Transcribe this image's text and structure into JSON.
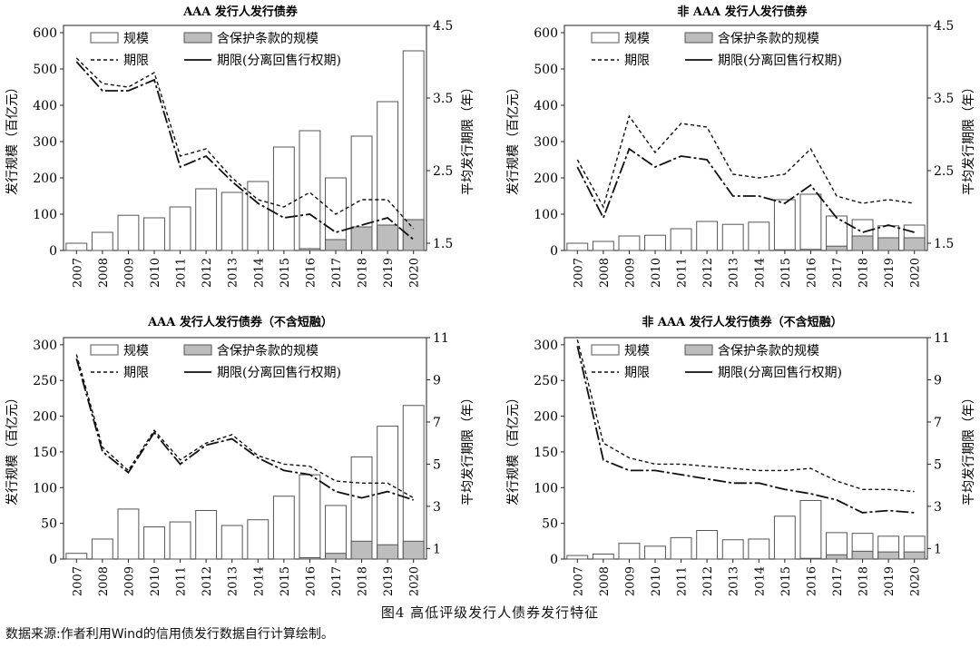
{
  "figure": {
    "caption": "图4 高低评级发行人债券发行特征",
    "source": "数据来源:作者利用Wind的信用债发行数据自行计算绘制。"
  },
  "chart_data": [
    {
      "type": "bar",
      "title": "AAA 发行人发行债券",
      "ylabel": "发行规模（百亿元）",
      "y2label": "平均发行期限（年）",
      "ylim": [
        0,
        620
      ],
      "y2lim": [
        1.4,
        4.5
      ],
      "yticks": [
        0,
        100,
        200,
        300,
        400,
        500,
        600
      ],
      "y2ticks": [
        1.5,
        2.5,
        3.5,
        4.5
      ],
      "categories": [
        "2007",
        "2008",
        "2009",
        "2010",
        "2011",
        "2012",
        "2013",
        "2014",
        "2015",
        "2016",
        "2017",
        "2018",
        "2019",
        "2020"
      ],
      "legend": [
        "规模",
        "含保护条款的规模",
        "期限",
        "期限(分离回售行权期)"
      ],
      "series": [
        {
          "name": "规模",
          "type": "bar",
          "values": [
            20,
            50,
            97,
            90,
            120,
            170,
            160,
            190,
            285,
            330,
            200,
            315,
            410,
            550
          ]
        },
        {
          "name": "含保护条款的规模",
          "type": "bar",
          "values": [
            0,
            0,
            0,
            0,
            0,
            0,
            0,
            0,
            0,
            5,
            30,
            65,
            70,
            85
          ]
        },
        {
          "name": "期限",
          "type": "line",
          "values": [
            4.05,
            3.7,
            3.65,
            3.85,
            2.7,
            2.8,
            2.4,
            2.1,
            2.0,
            2.2,
            1.9,
            2.1,
            2.1,
            1.7
          ]
        },
        {
          "name": "期限(分离回售行权期)",
          "type": "line",
          "values": [
            4.0,
            3.6,
            3.6,
            3.75,
            2.55,
            2.7,
            2.35,
            2.05,
            1.85,
            1.9,
            1.65,
            1.75,
            1.85,
            1.55
          ]
        }
      ]
    },
    {
      "type": "bar",
      "title": "非 AAA 发行人发行债券",
      "ylabel": "发行规模（百亿元）",
      "y2label": "平均发行期限（年）",
      "ylim": [
        0,
        620
      ],
      "y2lim": [
        1.4,
        4.5
      ],
      "yticks": [
        0,
        100,
        200,
        300,
        400,
        500,
        600
      ],
      "y2ticks": [
        1.5,
        2.5,
        3.5,
        4.5
      ],
      "categories": [
        "2007",
        "2008",
        "2009",
        "2010",
        "2011",
        "2012",
        "2013",
        "2014",
        "2015",
        "2016",
        "2017",
        "2018",
        "2019",
        "2020"
      ],
      "legend": [
        "规模",
        "含保护条款的规模",
        "期限",
        "期限(分离回售行权期)"
      ],
      "series": [
        {
          "name": "规模",
          "type": "bar",
          "values": [
            20,
            25,
            40,
            42,
            60,
            80,
            72,
            78,
            140,
            155,
            95,
            85,
            68,
            70
          ]
        },
        {
          "name": "含保护条款的规模",
          "type": "bar",
          "values": [
            0,
            0,
            0,
            0,
            0,
            0,
            0,
            0,
            2,
            3,
            12,
            40,
            35,
            35
          ]
        },
        {
          "name": "期限",
          "type": "line",
          "values": [
            2.65,
            2.0,
            3.25,
            2.75,
            3.15,
            3.1,
            2.45,
            2.4,
            2.45,
            2.8,
            2.15,
            2.05,
            2.1,
            2.05
          ]
        },
        {
          "name": "期限(分离回售行权期)",
          "type": "line",
          "values": [
            2.55,
            1.85,
            2.8,
            2.55,
            2.7,
            2.65,
            2.15,
            2.15,
            2.05,
            2.3,
            1.85,
            1.65,
            1.75,
            1.65
          ]
        }
      ]
    },
    {
      "type": "bar",
      "title": "AAA 发行人发行债券（不含短融）",
      "ylabel": "发行规模（百亿元）",
      "y2label": "平均发行期限（年）",
      "ylim": [
        0,
        310
      ],
      "y2lim": [
        0.5,
        11
      ],
      "yticks": [
        0,
        50,
        100,
        150,
        200,
        250,
        300
      ],
      "y2ticks": [
        1,
        3,
        5,
        7,
        9,
        11
      ],
      "categories": [
        "2007",
        "2008",
        "2009",
        "2010",
        "2011",
        "2012",
        "2013",
        "2014",
        "2015",
        "2016",
        "2017",
        "2018",
        "2019",
        "2020"
      ],
      "legend": [
        "规模",
        "含保护条款的规模",
        "期限",
        "期限(分离回售行权期)"
      ],
      "series": [
        {
          "name": "规模",
          "type": "bar",
          "values": [
            8,
            28,
            70,
            45,
            52,
            68,
            47,
            55,
            88,
            118,
            75,
            143,
            186,
            215
          ]
        },
        {
          "name": "含保护条款的规模",
          "type": "bar",
          "values": [
            0,
            0,
            0,
            0,
            0,
            0,
            0,
            0,
            0,
            2,
            8,
            25,
            20,
            25
          ]
        },
        {
          "name": "期限",
          "type": "line",
          "values": [
            10.2,
            5.8,
            4.7,
            6.6,
            5.2,
            6.0,
            6.4,
            5.4,
            5.0,
            4.9,
            4.2,
            4.1,
            4.1,
            3.4
          ]
        },
        {
          "name": "期限(分离回售行权期)",
          "type": "line",
          "values": [
            10.0,
            5.6,
            4.6,
            6.5,
            5.0,
            5.9,
            6.2,
            5.3,
            4.7,
            4.5,
            3.7,
            3.4,
            3.7,
            3.3
          ]
        }
      ]
    },
    {
      "type": "bar",
      "title": "非 AAA 发行人发行债券（不含短融）",
      "ylabel": "发行规模（百亿元）",
      "y2label": "平均发行期限（年）",
      "ylim": [
        0,
        310
      ],
      "y2lim": [
        0.5,
        11
      ],
      "yticks": [
        0,
        50,
        100,
        150,
        200,
        250,
        300
      ],
      "y2ticks": [
        1,
        3,
        5,
        7,
        9,
        11
      ],
      "categories": [
        "2007",
        "2008",
        "2009",
        "2010",
        "2011",
        "2012",
        "2013",
        "2014",
        "2015",
        "2016",
        "2017",
        "2018",
        "2019",
        "2020"
      ],
      "legend": [
        "规模",
        "含保护条款的规模",
        "期限",
        "期限(分离回售行权期)"
      ],
      "series": [
        {
          "name": "规模",
          "type": "bar",
          "values": [
            5,
            7,
            22,
            18,
            30,
            40,
            27,
            28,
            60,
            82,
            37,
            36,
            32,
            32
          ]
        },
        {
          "name": "含保护条款的规模",
          "type": "bar",
          "values": [
            0,
            0,
            0,
            0,
            0,
            0,
            0,
            0,
            0,
            1,
            6,
            11,
            10,
            10
          ]
        },
        {
          "name": "期限",
          "type": "line",
          "values": [
            10.9,
            6.0,
            5.3,
            5.0,
            5.0,
            4.9,
            4.8,
            4.7,
            4.7,
            4.8,
            4.2,
            3.8,
            3.8,
            3.7
          ]
        },
        {
          "name": "期限(分离回售行权期)",
          "type": "line",
          "values": [
            10.6,
            5.2,
            4.7,
            4.7,
            4.5,
            4.3,
            4.1,
            4.1,
            3.8,
            3.6,
            3.3,
            2.7,
            2.8,
            2.7
          ]
        }
      ]
    }
  ]
}
